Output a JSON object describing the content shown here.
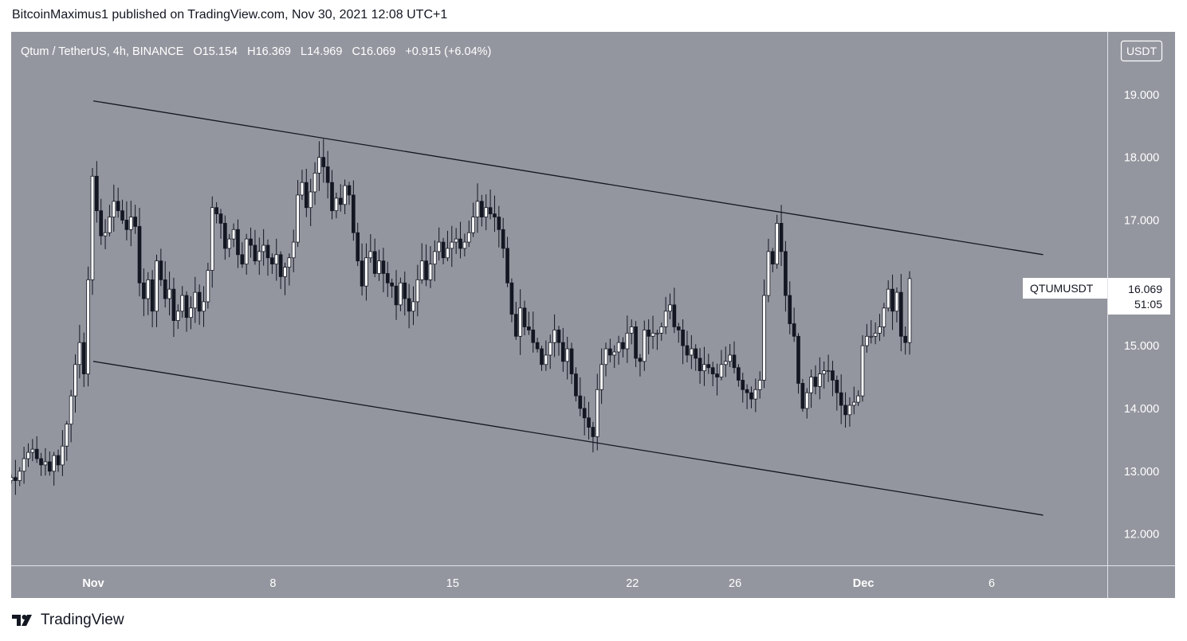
{
  "header": {
    "publisher": "BitcoinMaximus1 published on TradingView.com, Nov 30, 2021 12:08 UTC+1"
  },
  "chart_header": {
    "symbol": "Qtum / TetherUS, 4h, BINANCE",
    "o_label": "O",
    "o": "15.154",
    "h_label": "H",
    "h": "16.369",
    "l_label": "L",
    "l": "14.969",
    "c_label": "C",
    "c": "16.069",
    "change": "+0.915 (+6.04%)"
  },
  "axis": {
    "currency": "USDT"
  },
  "price_tag": {
    "symbol": "QTUMUSDT",
    "price": "16.069",
    "countdown": "51:05"
  },
  "footer": {
    "brand": "TradingView",
    "logo_icon": "tradingview-logo-icon"
  },
  "colors": {
    "background": "#94969f",
    "candle_up": "#ffffff",
    "candle_down": "#131722",
    "channel": "#131722"
  },
  "chart_data": {
    "type": "candlestick",
    "title": "Qtum / TetherUS, 4h, BINANCE",
    "x_ticks": [
      {
        "label": "Nov",
        "day": 1
      },
      {
        "label": "8",
        "day": 8
      },
      {
        "label": "15",
        "day": 15
      },
      {
        "label": "22",
        "day": 22
      },
      {
        "label": "26",
        "day": 26
      },
      {
        "label": "Dec",
        "day": 31
      },
      {
        "label": "6",
        "day": 36
      }
    ],
    "y_ticks": [
      "19.000",
      "18.000",
      "17.000",
      "15.000",
      "14.000",
      "13.000",
      "12.000"
    ],
    "ylim": [
      11.5,
      20.0
    ],
    "xlim": [
      -2.2,
      40.5
    ],
    "close_series": [
      12.9,
      12.85,
      13.0,
      13.2,
      13.3,
      13.35,
      13.2,
      13.1,
      13.15,
      13.0,
      13.25,
      13.1,
      13.4,
      13.75,
      14.2,
      14.7,
      15.05,
      14.55,
      16.05,
      17.7,
      17.15,
      16.75,
      16.8,
      17.05,
      17.3,
      17.15,
      17.0,
      16.85,
      17.05,
      16.9,
      16.0,
      15.75,
      16.05,
      15.55,
      16.35,
      16.05,
      15.75,
      15.9,
      15.4,
      15.55,
      15.8,
      15.45,
      15.6,
      15.85,
      15.55,
      15.7,
      16.2,
      17.2,
      17.1,
      16.95,
      16.55,
      16.7,
      16.85,
      16.45,
      16.3,
      16.7,
      16.6,
      16.35,
      16.5,
      16.6,
      16.4,
      16.3,
      16.45,
      16.1,
      16.25,
      16.4,
      16.65,
      17.4,
      17.6,
      17.2,
      17.45,
      17.75,
      18.0,
      17.85,
      17.6,
      17.15,
      17.35,
      17.25,
      17.55,
      17.4,
      16.8,
      16.35,
      15.95,
      16.4,
      16.5,
      16.15,
      16.35,
      16.15,
      16.0,
      15.95,
      15.65,
      16.0,
      15.75,
      15.55,
      15.7,
      16.05,
      16.35,
      16.05,
      16.3,
      16.5,
      16.65,
      16.4,
      16.55,
      16.65,
      16.7,
      16.55,
      16.65,
      16.8,
      17.05,
      17.3,
      17.05,
      17.2,
      17.1,
      17.05,
      16.85,
      16.55,
      16.0,
      15.5,
      15.15,
      15.6,
      15.3,
      15.25,
      15.05,
      14.95,
      14.7,
      14.85,
      15.05,
      15.25,
      15.05,
      14.75,
      14.95,
      14.55,
      14.2,
      14.0,
      13.85,
      13.7,
      13.55,
      14.3,
      14.7,
      14.95,
      14.85,
      14.9,
      15.05,
      14.95,
      15.2,
      15.3,
      14.8,
      14.75,
      15.25,
      15.15,
      15.2,
      15.2,
      15.3,
      15.55,
      15.65,
      15.3,
      15.25,
      15.0,
      14.85,
      14.95,
      14.8,
      14.6,
      14.7,
      14.65,
      14.55,
      14.5,
      14.7,
      14.75,
      14.85,
      14.65,
      14.45,
      14.3,
      14.25,
      14.15,
      14.3,
      14.45,
      15.8,
      16.5,
      16.3,
      16.95,
      16.5,
      15.8,
      15.35,
      15.15,
      14.4,
      14.0,
      14.25,
      14.5,
      14.35,
      14.55,
      14.6,
      14.6,
      14.45,
      14.25,
      14.05,
      13.9,
      14.05,
      14.1,
      14.2,
      15.0,
      15.15,
      15.15,
      15.2,
      15.3,
      15.6,
      15.9,
      15.55,
      15.85,
      15.15,
      15.05,
      16.069
    ],
    "channel_lines": [
      {
        "name": "",
        "from": {
          "day": 1.0,
          "price": 18.9
        },
        "to": {
          "day": 38.0,
          "price": 16.45
        }
      },
      {
        "name": "",
        "from": {
          "day": 1.0,
          "price": 14.75
        },
        "to": {
          "day": 38.0,
          "price": 12.3
        }
      }
    ]
  }
}
